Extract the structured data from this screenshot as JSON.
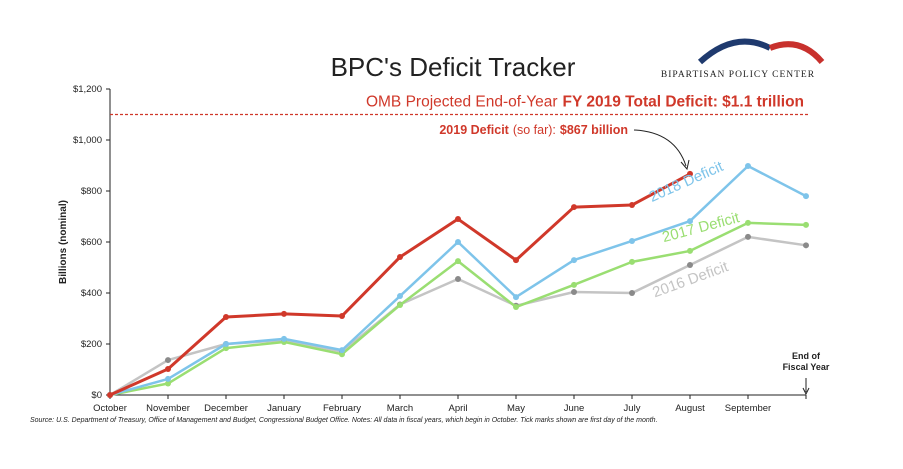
{
  "chart_data": {
    "type": "line",
    "title": "BPC's Deficit Tracker",
    "brand": "BIPARTISAN POLICY CENTER",
    "ylabel": "Billions (nominal)",
    "categories": [
      "October",
      "November",
      "December",
      "January",
      "February",
      "March",
      "April",
      "May",
      "June",
      "July",
      "August",
      "September",
      null
    ],
    "end_label": [
      "End of",
      "Fiscal Year"
    ],
    "ylim": [
      0,
      1200
    ],
    "yticks": [
      {
        "value": 0,
        "label": "$0"
      },
      {
        "value": 200,
        "label": "$200"
      },
      {
        "value": 400,
        "label": "$400"
      },
      {
        "value": 600,
        "label": "$600"
      },
      {
        "value": 800,
        "label": "$800"
      },
      {
        "value": 1000,
        "label": "$1,000"
      },
      {
        "value": 1200,
        "label": "$1,200"
      }
    ],
    "reference": {
      "value": 1100,
      "color": "#d0382a",
      "label": [
        "OMB Projected End-of-Year",
        "FY 2019 Total Deficit: $1.1 trillion"
      ]
    },
    "current_label": [
      "2019 Deficit",
      "(so far):",
      "$867 billion"
    ],
    "series": [
      {
        "name": "2016 Deficit",
        "color": "#c4c4c4",
        "values": [
          0,
          137,
          200,
          215,
          170,
          355,
          455,
          350,
          404,
          400,
          510,
          620,
          587
        ]
      },
      {
        "name": "2017 Deficit",
        "color": "#9ade72",
        "values": [
          0,
          45,
          184,
          208,
          160,
          353,
          525,
          345,
          432,
          522,
          565,
          675,
          667
        ]
      },
      {
        "name": "2018 Deficit",
        "color": "#7ec4ea",
        "values": [
          0,
          63,
          200,
          220,
          176,
          388,
          600,
          384,
          529,
          604,
          682,
          898,
          780
        ]
      },
      {
        "name": null,
        "color": "#d0382a",
        "values": [
          0,
          102,
          306,
          318,
          310,
          541,
          690,
          529,
          737,
          745,
          867,
          null,
          null
        ]
      }
    ],
    "source": "Source: U.S. Department of Treasury, Office of Management and Budget, Congressional Budget Office. Notes: All data in fiscal years, which begin in October. Tick marks shown are first day of the month."
  }
}
